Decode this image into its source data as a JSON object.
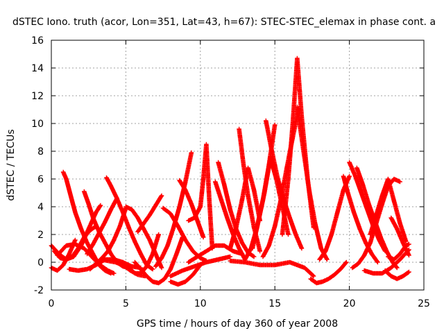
{
  "chart_data": {
    "type": "scatter",
    "title": "dSTEC Iono. truth (acor, Lon=351, Lat=43, h=67): STEC-STEC_elemax in phase cont. a",
    "xlabel": "GPS time / hours of day 360 of year 2008",
    "ylabel": "dSTEC  / TECUs",
    "xlim": [
      0,
      25
    ],
    "ylim": [
      -2,
      16
    ],
    "xticks": [
      "0",
      "5",
      "10",
      "15",
      "20",
      "25"
    ],
    "yticks": [
      "-2",
      "0",
      "2",
      "4",
      "6",
      "8",
      "10",
      "12",
      "14",
      "16"
    ],
    "grid": true,
    "marker": "plus",
    "color": "#ff0000",
    "series": [
      {
        "x": [
          0,
          0.5,
          1.0,
          1.5,
          2.0,
          2.5,
          3.0,
          3.3
        ],
        "y": [
          1.2,
          0.6,
          0.2,
          0.4,
          1.2,
          2.4,
          3.6,
          4.1
        ]
      },
      {
        "x": [
          0,
          0.4,
          0.8,
          1.2,
          1.6
        ],
        "y": [
          -0.4,
          -0.6,
          -0.2,
          0.6,
          1.6
        ]
      },
      {
        "x": [
          0.2,
          0.6,
          1.0,
          1.4,
          1.8,
          2.2,
          2.6,
          3.0
        ],
        "y": [
          0.8,
          0.3,
          0.2,
          0.4,
          1.0,
          1.8,
          2.3,
          2.6
        ]
      },
      {
        "x": [
          0.8,
          1.0,
          1.3,
          1.6,
          2.0,
          2.4,
          2.8,
          3.2,
          3.6,
          4.0
        ],
        "y": [
          6.5,
          6.0,
          4.8,
          3.6,
          2.4,
          1.4,
          0.6,
          -0.2,
          -0.6,
          -0.8
        ]
      },
      {
        "x": [
          0.4,
          1.0,
          1.6,
          2.2,
          2.8,
          3.4,
          3.8,
          4.2
        ],
        "y": [
          0.5,
          1.2,
          1.3,
          1.0,
          0.3,
          -0.3,
          -0.6,
          -0.8
        ]
      },
      {
        "x": [
          2.2,
          2.5,
          2.8,
          3.2,
          3.6,
          4.0,
          4.4,
          4.8,
          5.2
        ],
        "y": [
          5.1,
          4.2,
          3.2,
          2.2,
          1.4,
          0.6,
          0.0,
          -0.3,
          -0.4
        ]
      },
      {
        "x": [
          1.2,
          1.8,
          2.4,
          3.0,
          3.6,
          4.2,
          4.8,
          5.4,
          6.0
        ],
        "y": [
          -0.5,
          -0.6,
          -0.5,
          -0.2,
          0.2,
          0.2,
          0.0,
          -0.3,
          -0.4
        ]
      },
      {
        "x": [
          2.4,
          2.8,
          3.2,
          3.6,
          4.0,
          4.4
        ],
        "y": [
          0.6,
          1.3,
          2.1,
          2.9,
          3.8,
          4.6
        ]
      },
      {
        "x": [
          2.6,
          3.0,
          3.4,
          3.8,
          4.2,
          4.6,
          5.0
        ],
        "y": [
          -0.5,
          -0.1,
          0.3,
          0.8,
          1.6,
          2.6,
          3.9
        ]
      },
      {
        "x": [
          3.7,
          4.0,
          4.4,
          4.8,
          5.2,
          5.6,
          6.0,
          6.4,
          6.8
        ],
        "y": [
          6.1,
          5.5,
          4.6,
          3.6,
          2.5,
          1.5,
          0.6,
          -0.2,
          -0.5
        ]
      },
      {
        "x": [
          3.3,
          3.8,
          4.3,
          4.8,
          5.3,
          5.8,
          6.3
        ],
        "y": [
          0.2,
          0.1,
          0.0,
          -0.2,
          -0.6,
          -0.9,
          -1.0
        ]
      },
      {
        "x": [
          5.0,
          5.4,
          5.8,
          6.2,
          6.6,
          7.0,
          7.4
        ],
        "y": [
          4.0,
          3.8,
          3.2,
          2.4,
          1.6,
          0.6,
          -0.4
        ]
      },
      {
        "x": [
          4.8,
          5.2,
          5.6,
          6.0,
          6.4,
          6.8,
          7.2
        ],
        "y": [
          0.0,
          -0.4,
          -0.8,
          -0.8,
          -0.3,
          0.6,
          2.0
        ]
      },
      {
        "x": [
          5.6,
          6.0,
          6.4,
          6.8,
          7.2,
          7.6,
          8.0,
          8.4,
          8.8
        ],
        "y": [
          0.0,
          -0.5,
          -1.0,
          -1.4,
          -1.5,
          -1.2,
          -0.5,
          0.6,
          1.8
        ]
      },
      {
        "x": [
          5.8,
          6.2,
          6.6,
          7.0,
          7.4
        ],
        "y": [
          2.2,
          2.8,
          3.4,
          4.1,
          4.8
        ]
      },
      {
        "x": [
          7.0,
          7.4,
          7.8,
          8.2,
          8.6,
          9.0,
          9.4
        ],
        "y": [
          -0.3,
          0.3,
          1.2,
          2.5,
          4.0,
          5.8,
          7.9
        ]
      },
      {
        "x": [
          7.5,
          8.0,
          8.5,
          9.0,
          9.5,
          10.0,
          10.4
        ],
        "y": [
          3.9,
          3.5,
          2.6,
          1.6,
          0.8,
          0.3,
          0.1
        ]
      },
      {
        "x": [
          8.6,
          9.0,
          9.4,
          9.8,
          10.2
        ],
        "y": [
          5.9,
          5.2,
          4.2,
          3.0,
          1.8
        ]
      },
      {
        "x": [
          8.0,
          8.5,
          9.0,
          9.5,
          10.0
        ],
        "y": [
          -1.4,
          -1.6,
          -1.4,
          -0.9,
          -0.2
        ]
      },
      {
        "x": [
          9.2,
          9.6,
          10.0,
          10.2,
          10.4,
          10.6,
          10.8
        ],
        "y": [
          3.0,
          3.2,
          4.0,
          6.0,
          8.5,
          4.5,
          1.0
        ]
      },
      {
        "x": [
          8.0,
          8.8,
          9.6,
          10.4,
          11.2,
          12.0
        ],
        "y": [
          -1.0,
          -0.6,
          -0.3,
          0.0,
          0.2,
          0.4
        ]
      },
      {
        "x": [
          9.2,
          9.8,
          10.4,
          11.0,
          11.6,
          12.2,
          12.8
        ],
        "y": [
          0.0,
          0.4,
          0.8,
          1.2,
          1.2,
          0.8,
          0.6
        ]
      },
      {
        "x": [
          11.2,
          11.6,
          12.0,
          12.4,
          12.8,
          13.2,
          13.6
        ],
        "y": [
          7.2,
          5.6,
          3.8,
          2.4,
          1.4,
          0.7,
          0.4
        ]
      },
      {
        "x": [
          11.0,
          11.4,
          11.8,
          12.2,
          12.6,
          13.0
        ],
        "y": [
          5.8,
          4.5,
          3.2,
          2.0,
          1.0,
          0.2
        ]
      },
      {
        "x": [
          12.0,
          12.4,
          12.8,
          13.2,
          13.6,
          14.0
        ],
        "y": [
          1.0,
          2.5,
          4.5,
          6.8,
          5.2,
          3.0
        ]
      },
      {
        "x": [
          12.6,
          12.9,
          13.2,
          13.6,
          14.0
        ],
        "y": [
          9.6,
          7.0,
          4.8,
          2.5,
          0.8
        ]
      },
      {
        "x": [
          13.0,
          13.4,
          13.8,
          14.2,
          14.6,
          15.0
        ],
        "y": [
          0.2,
          1.0,
          2.5,
          4.5,
          7.0,
          9.9
        ]
      },
      {
        "x": [
          13.5,
          13.9,
          14.3,
          14.7,
          15.1,
          15.5,
          15.9
        ],
        "y": [
          1.0,
          3.0,
          5.0,
          7.5,
          6.0,
          4.0,
          2.0
        ]
      },
      {
        "x": [
          14.4,
          14.8,
          15.2,
          15.6,
          16.0,
          16.4,
          16.8
        ],
        "y": [
          10.2,
          8.0,
          6.0,
          4.5,
          3.2,
          2.0,
          1.0
        ]
      },
      {
        "x": [
          14.2,
          14.6,
          15.0,
          15.4,
          15.8,
          16.2,
          16.6
        ],
        "y": [
          0.4,
          1.2,
          2.6,
          4.5,
          6.8,
          9.0,
          11.1
        ]
      },
      {
        "x": [
          15.5,
          15.9,
          16.2,
          16.5,
          16.8,
          17.2,
          17.6
        ],
        "y": [
          2.0,
          6.0,
          10.0,
          14.7,
          10.5,
          6.0,
          2.5
        ]
      },
      {
        "x": [
          16.5,
          16.9,
          17.3,
          17.7,
          18.1,
          18.5
        ],
        "y": [
          11.2,
          8.2,
          5.2,
          2.8,
          1.0,
          0.2
        ]
      },
      {
        "x": [
          12.0,
          13.0,
          14.0,
          15.0,
          16.0,
          17.0,
          17.6
        ],
        "y": [
          0.1,
          0.0,
          -0.2,
          -0.2,
          0.0,
          -0.4,
          -1.0
        ]
      },
      {
        "x": [
          17.4,
          17.8,
          18.2,
          18.6,
          19.0,
          19.4,
          19.8
        ],
        "y": [
          -1.2,
          -1.5,
          -1.4,
          -1.2,
          -0.9,
          -0.5,
          0.0
        ]
      },
      {
        "x": [
          18.0,
          18.4,
          18.8,
          19.2,
          19.6,
          20.0
        ],
        "y": [
          0.2,
          0.8,
          2.0,
          3.6,
          5.2,
          6.2
        ]
      },
      {
        "x": [
          19.6,
          19.9,
          20.3,
          20.7,
          21.1,
          21.5,
          21.9
        ],
        "y": [
          6.2,
          5.0,
          3.6,
          2.4,
          1.4,
          0.6,
          0.0
        ]
      },
      {
        "x": [
          20.0,
          20.4,
          20.8,
          21.2,
          21.6,
          22.0,
          22.4
        ],
        "y": [
          7.2,
          6.2,
          5.0,
          3.8,
          2.6,
          1.6,
          0.8
        ]
      },
      {
        "x": [
          20.5,
          20.9,
          21.3,
          21.7,
          22.1,
          22.5,
          22.9,
          23.2
        ],
        "y": [
          6.8,
          5.6,
          4.2,
          3.0,
          1.8,
          0.8,
          0.0,
          -0.4
        ]
      },
      {
        "x": [
          20.2,
          20.6,
          21.0,
          21.4,
          21.8,
          22.2,
          22.6,
          23.0,
          23.4
        ],
        "y": [
          -0.4,
          -0.1,
          0.5,
          1.4,
          2.8,
          4.2,
          5.5,
          6.0,
          5.8
        ]
      },
      {
        "x": [
          21.4,
          21.8,
          22.2,
          22.6,
          23.0,
          23.4,
          23.8
        ],
        "y": [
          2.0,
          3.4,
          4.8,
          6.0,
          4.4,
          2.8,
          1.5
        ]
      },
      {
        "x": [
          21.0,
          21.6,
          22.2,
          22.8,
          23.4,
          24.0
        ],
        "y": [
          -0.6,
          -0.8,
          -0.8,
          -0.4,
          0.2,
          0.9
        ]
      },
      {
        "x": [
          22.4,
          22.8,
          23.2,
          23.6,
          24.0
        ],
        "y": [
          -0.6,
          -1.0,
          -1.2,
          -1.0,
          -0.7
        ]
      },
      {
        "x": [
          22.6,
          23.0,
          23.4,
          23.8,
          24.0
        ],
        "y": [
          0.4,
          0.2,
          0.6,
          1.2,
          1.3
        ]
      },
      {
        "x": [
          22.8,
          23.2,
          23.6,
          24.0
        ],
        "y": [
          3.2,
          2.4,
          1.4,
          0.5
        ]
      }
    ]
  }
}
